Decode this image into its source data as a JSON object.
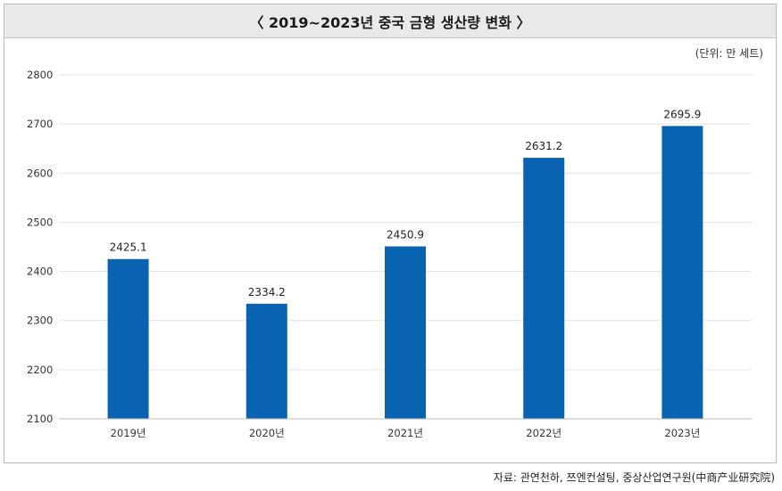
{
  "chart_data": {
    "type": "bar",
    "title": "〈 2019~2023년 중국 금형 생산량 변화 〉",
    "unit_label": "(단위: 만 세트)",
    "categories": [
      "2019년",
      "2020년",
      "2021년",
      "2022년",
      "2023년"
    ],
    "values": [
      2425.1,
      2334.2,
      2450.9,
      2631.2,
      2695.9
    ],
    "value_labels": [
      "2425.1",
      "2334.2",
      "2450.9",
      "2631.2",
      "2695.9"
    ],
    "ylim": [
      2100,
      2800
    ],
    "yticks": [
      2100,
      2200,
      2300,
      2400,
      2500,
      2600,
      2700,
      2800
    ],
    "xlabel": "",
    "ylabel": "",
    "grid": true,
    "bar_color": "#0a63b0"
  },
  "source": "자료: 관연천하, 쯔엔컨설팅, 중상산업연구원(中商产业研究院)"
}
